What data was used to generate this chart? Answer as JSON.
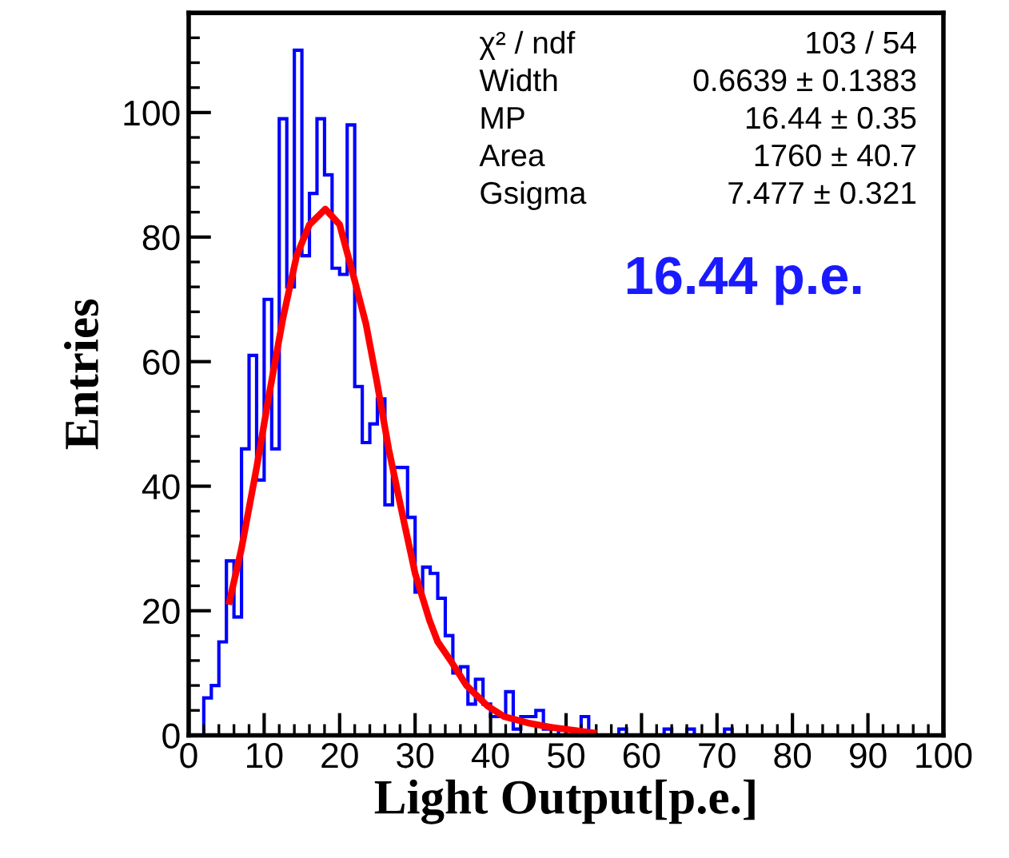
{
  "chart_data": {
    "type": "histogram",
    "xlabel": "Light Output[p.e.]",
    "ylabel": "Entries",
    "xlim": [
      0,
      100
    ],
    "xticks": [
      0,
      10,
      20,
      30,
      40,
      50,
      60,
      70,
      80,
      90,
      100
    ],
    "ylim": [
      0,
      116
    ],
    "yticks": [
      0,
      20,
      40,
      60,
      80,
      100
    ],
    "grid": false,
    "legend": false,
    "series": [
      {
        "color": "#0000ff",
        "bins": [
          0,
          1,
          2,
          3,
          4,
          5,
          6,
          7,
          8,
          9,
          10,
          11,
          12,
          13,
          14,
          15,
          16,
          17,
          18,
          19,
          20,
          21,
          22,
          23,
          24,
          25,
          26,
          27,
          28,
          29,
          30,
          31,
          32,
          33,
          34,
          35,
          36,
          37,
          38,
          39,
          40,
          41,
          42,
          43,
          44,
          45,
          46,
          47,
          48,
          49,
          50,
          51,
          52,
          53,
          54,
          55,
          56,
          57,
          58,
          59,
          60,
          61,
          62,
          63,
          64,
          65,
          66,
          67,
          68,
          69,
          70,
          71,
          72,
          73,
          74,
          75,
          76,
          77,
          78,
          79,
          80,
          81,
          82,
          83,
          84,
          85,
          86,
          87,
          88,
          89,
          90,
          91,
          92,
          93,
          94,
          95,
          96,
          97,
          98,
          99,
          100
        ],
        "values": [
          0,
          0,
          6,
          8,
          15,
          28,
          19,
          46,
          61,
          41,
          70,
          46,
          99,
          72,
          110,
          77,
          87,
          99,
          90,
          75,
          74,
          98,
          56,
          47,
          50,
          54,
          37,
          43,
          43,
          35,
          23,
          27,
          26,
          22,
          16,
          10,
          11,
          5,
          9,
          5,
          3,
          3,
          7,
          1,
          3,
          3,
          4,
          1,
          1,
          0,
          0,
          0,
          3,
          0,
          0,
          0,
          0,
          1,
          0,
          0,
          0,
          0,
          0,
          1,
          0,
          0,
          1,
          0,
          0,
          0,
          0,
          1,
          0,
          0,
          0,
          0,
          0,
          0,
          0,
          0,
          0,
          0,
          0,
          0,
          0,
          0,
          0,
          0,
          0,
          0,
          0,
          0,
          0,
          0,
          0,
          0,
          0,
          0,
          0,
          0
        ]
      },
      {
        "type": "line",
        "color": "#ff0000",
        "x": [
          5.4,
          7,
          9,
          10.7,
          12.5,
          14.3,
          16,
          18.1,
          20,
          22,
          23.5,
          24.9,
          26.5,
          28.4,
          30,
          31.9,
          33,
          34.7,
          36.8,
          39.6,
          41.8,
          44.9,
          48,
          53.6
        ],
        "values": [
          21.5,
          30,
          43,
          55,
          67,
          77,
          82,
          84.5,
          82,
          73,
          66,
          57,
          46,
          35,
          26,
          18.5,
          15,
          12,
          8,
          4.7,
          3,
          2,
          1.3,
          0.4
        ]
      }
    ],
    "annotations": [
      "χ² / ndf",
      "103 / 54",
      "Width",
      "0.6639 ± 0.1383",
      "MP",
      "16.44 ± 0.35",
      "Area",
      "1760 ± 40.7",
      "Gsigma",
      "7.477 ± 0.321",
      "16.44 p.e."
    ]
  }
}
